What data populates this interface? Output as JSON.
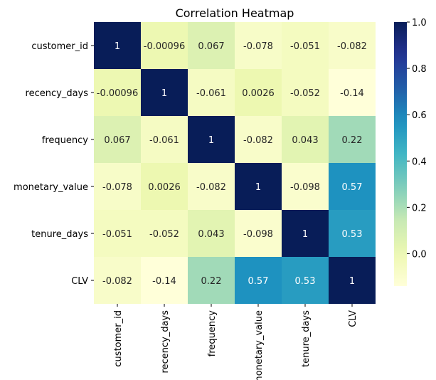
{
  "chart_data": {
    "type": "heatmap",
    "title": "Correlation Heatmap",
    "row_labels": [
      "customer_id",
      "recency_days",
      "frequency",
      "monetary_value",
      "tenure_days",
      "CLV"
    ],
    "col_labels": [
      "customer_id",
      "recency_days",
      "frequency",
      "monetary_value",
      "tenure_days",
      "CLV"
    ],
    "values": [
      [
        1,
        -0.00096,
        0.067,
        -0.078,
        -0.051,
        -0.082
      ],
      [
        -0.00096,
        1,
        -0.061,
        0.0026,
        -0.052,
        -0.14
      ],
      [
        0.067,
        -0.061,
        1,
        -0.082,
        0.043,
        0.22
      ],
      [
        -0.078,
        0.0026,
        -0.082,
        1,
        -0.098,
        0.57
      ],
      [
        -0.051,
        -0.052,
        0.043,
        -0.098,
        1,
        0.53
      ],
      [
        -0.082,
        -0.14,
        0.22,
        0.57,
        0.53,
        1
      ]
    ],
    "annotations": [
      [
        "1",
        "-0.00096",
        "0.067",
        "-0.078",
        "-0.051",
        "-0.082"
      ],
      [
        "-0.00096",
        "1",
        "-0.061",
        "0.0026",
        "-0.052",
        "-0.14"
      ],
      [
        "0.067",
        "-0.061",
        "1",
        "-0.082",
        "0.043",
        "0.22"
      ],
      [
        "-0.078",
        "0.0026",
        "-0.082",
        "1",
        "-0.098",
        "0.57"
      ],
      [
        "-0.051",
        "-0.052",
        "0.043",
        "-0.098",
        "1",
        "0.53"
      ],
      [
        "-0.082",
        "-0.14",
        "0.22",
        "0.57",
        "0.53",
        "1"
      ]
    ],
    "colormap": "YlGnBu",
    "vmin": -0.14,
    "vmax": 1.0,
    "colorbar_ticks": [
      {
        "value": 0.0,
        "label": "0.0"
      },
      {
        "value": 0.2,
        "label": "0.2"
      },
      {
        "value": 0.4,
        "label": "0.4"
      },
      {
        "value": 0.6,
        "label": "0.6"
      },
      {
        "value": 0.8,
        "label": "0.8"
      },
      {
        "value": 1.0,
        "label": "1.0"
      }
    ],
    "legend": "right"
  }
}
